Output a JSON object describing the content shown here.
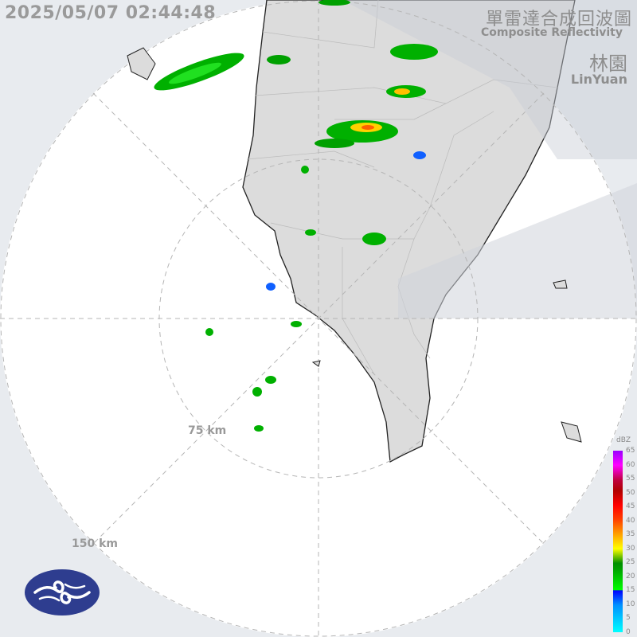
{
  "header": {
    "timestamp": "2025/05/07 02:44:48",
    "title_zh": "單雷達合成回波圖",
    "title_en": "Composite Reflectivity",
    "station_zh": "林園",
    "station_en": "LinYuan"
  },
  "range_rings": [
    {
      "label": "75 km"
    },
    {
      "label": "150 km"
    }
  ],
  "legend": {
    "unit": "dBZ",
    "ticks": [
      "65",
      "60",
      "55",
      "50",
      "45",
      "40",
      "35",
      "30",
      "25",
      "20",
      "15",
      "10",
      "5",
      "0"
    ]
  },
  "colors": {
    "land": "#dcdcdc",
    "sea": "#ffffff",
    "out_of_range": "#e8ebef",
    "logo": "#2e3d8f"
  },
  "logo": {
    "name": "cwa-logo"
  }
}
